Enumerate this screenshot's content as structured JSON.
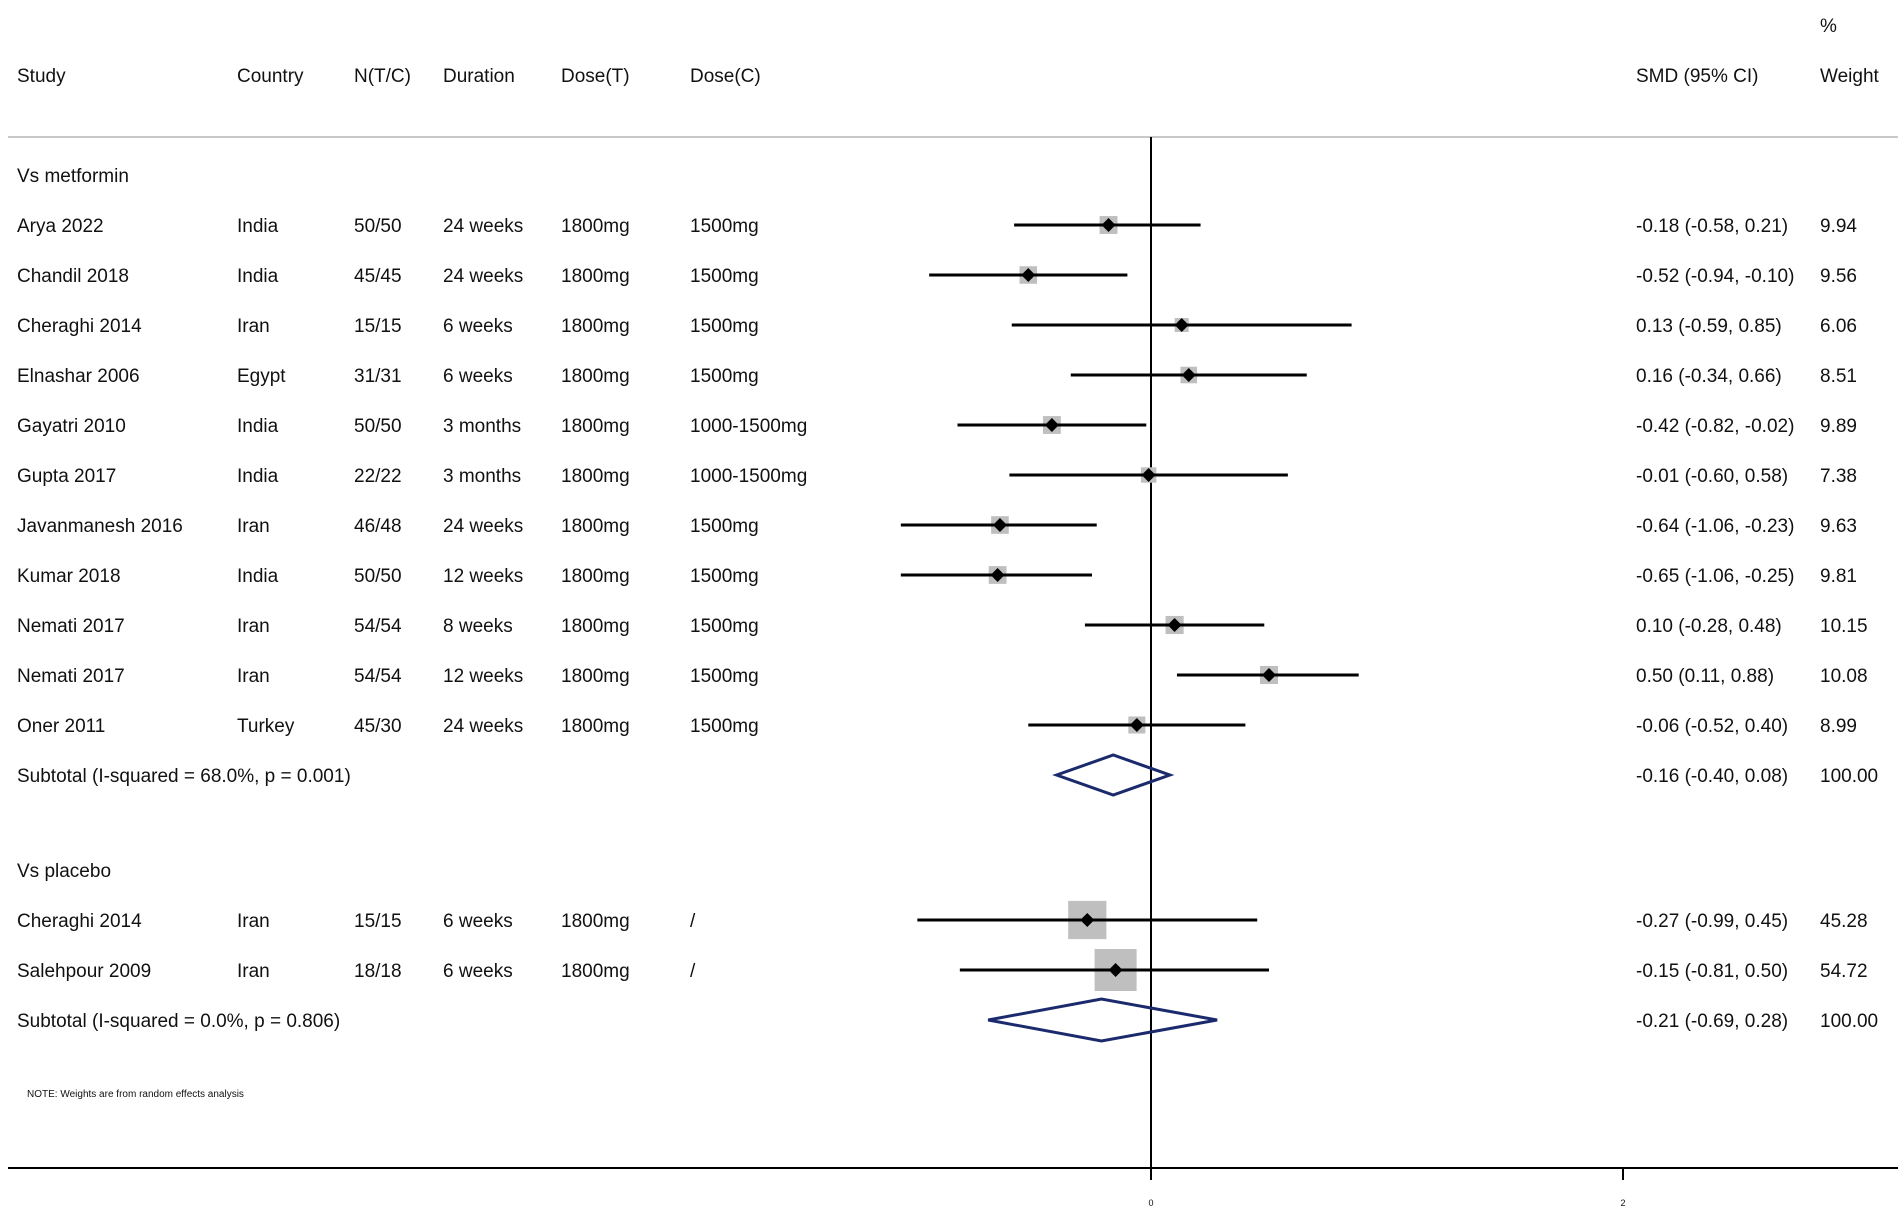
{
  "header": {
    "columns": {
      "study": "Study",
      "country": "Country",
      "n": "N(T/C)",
      "duration": "Duration",
      "dose_t": "Dose(T)",
      "dose_c": "Dose(C)",
      "smd": "SMD (95% CI)",
      "weight_top": "%",
      "weight": "Weight"
    }
  },
  "note": "NOTE: Weights are from random effects analysis",
  "colors": {
    "point": "#000000",
    "weight_box": "#bfbfbf",
    "diamond": "#1a2a6c",
    "axis": "#000000"
  },
  "chart_data": {
    "type": "forest",
    "xlim": [
      -1.06,
      2.0
    ],
    "null_line": 0,
    "x_ticks": [
      "0",
      "2"
    ],
    "groups": [
      {
        "label": "Vs metformin",
        "studies": [
          {
            "study": "Arya 2022",
            "country": "India",
            "n": "50/50",
            "duration": "24 weeks",
            "dose_t": "1800mg",
            "dose_c": "1500mg",
            "smd": -0.18,
            "lo": -0.58,
            "hi": 0.21,
            "ci_text": "-0.18 (-0.58, 0.21)",
            "weight": 9.94,
            "weight_text": "9.94"
          },
          {
            "study": "Chandil 2018",
            "country": "India",
            "n": "45/45",
            "duration": "24 weeks",
            "dose_t": "1800mg",
            "dose_c": "1500mg",
            "smd": -0.52,
            "lo": -0.94,
            "hi": -0.1,
            "ci_text": "-0.52 (-0.94, -0.10)",
            "weight": 9.56,
            "weight_text": "9.56"
          },
          {
            "study": "Cheraghi 2014",
            "country": "Iran",
            "n": "15/15",
            "duration": "6 weeks",
            "dose_t": "1800mg",
            "dose_c": "1500mg",
            "smd": 0.13,
            "lo": -0.59,
            "hi": 0.85,
            "ci_text": "0.13 (-0.59, 0.85)",
            "weight": 6.06,
            "weight_text": "6.06"
          },
          {
            "study": "Elnashar 2006",
            "country": "Egypt",
            "n": "31/31",
            "duration": "6 weeks",
            "dose_t": "1800mg",
            "dose_c": "1500mg",
            "smd": 0.16,
            "lo": -0.34,
            "hi": 0.66,
            "ci_text": "0.16 (-0.34, 0.66)",
            "weight": 8.51,
            "weight_text": "8.51"
          },
          {
            "study": "Gayatri 2010",
            "country": "India",
            "n": "50/50",
            "duration": "3 months",
            "dose_t": "1800mg",
            "dose_c": "1000-1500mg",
            "smd": -0.42,
            "lo": -0.82,
            "hi": -0.02,
            "ci_text": "-0.42 (-0.82, -0.02)",
            "weight": 9.89,
            "weight_text": "9.89"
          },
          {
            "study": "Gupta 2017",
            "country": "India",
            "n": "22/22",
            "duration": "3 months",
            "dose_t": "1800mg",
            "dose_c": "1000-1500mg",
            "smd": -0.01,
            "lo": -0.6,
            "hi": 0.58,
            "ci_text": "-0.01 (-0.60, 0.58)",
            "weight": 7.38,
            "weight_text": "7.38"
          },
          {
            "study": "Javanmanesh 2016",
            "country": "Iran",
            "n": "46/48",
            "duration": "24 weeks",
            "dose_t": "1800mg",
            "dose_c": "1500mg",
            "smd": -0.64,
            "lo": -1.06,
            "hi": -0.23,
            "ci_text": "-0.64 (-1.06, -0.23)",
            "weight": 9.63,
            "weight_text": "9.63"
          },
          {
            "study": "Kumar 2018",
            "country": "India",
            "n": "50/50",
            "duration": "12 weeks",
            "dose_t": "1800mg",
            "dose_c": "1500mg",
            "smd": -0.65,
            "lo": -1.06,
            "hi": -0.25,
            "ci_text": "-0.65 (-1.06, -0.25)",
            "weight": 9.81,
            "weight_text": "9.81"
          },
          {
            "study": "Nemati 2017",
            "country": "Iran",
            "n": "54/54",
            "duration": "8 weeks",
            "dose_t": "1800mg",
            "dose_c": "1500mg",
            "smd": 0.1,
            "lo": -0.28,
            "hi": 0.48,
            "ci_text": "0.10 (-0.28, 0.48)",
            "weight": 10.15,
            "weight_text": "10.15"
          },
          {
            "study": "Nemati 2017",
            "country": "Iran",
            "n": "54/54",
            "duration": "12 weeks",
            "dose_t": "1800mg",
            "dose_c": "1500mg",
            "smd": 0.5,
            "lo": 0.11,
            "hi": 0.88,
            "ci_text": "0.50 (0.11, 0.88)",
            "weight": 10.08,
            "weight_text": "10.08"
          },
          {
            "study": "Oner 2011",
            "country": "Turkey",
            "n": "45/30",
            "duration": "24 weeks",
            "dose_t": "1800mg",
            "dose_c": "1500mg",
            "smd": -0.06,
            "lo": -0.52,
            "hi": 0.4,
            "ci_text": "-0.06 (-0.52, 0.40)",
            "weight": 8.99,
            "weight_text": "8.99"
          }
        ],
        "subtotal": {
          "label": "Subtotal  (I-squared = 68.0%, p = 0.001)",
          "smd": -0.16,
          "lo": -0.4,
          "hi": 0.08,
          "ci_text": "-0.16 (-0.40, 0.08)",
          "weight_text": "100.00"
        }
      },
      {
        "label": "Vs placebo",
        "studies": [
          {
            "study": "Cheraghi 2014",
            "country": "Iran",
            "n": "15/15",
            "duration": "6 weeks",
            "dose_t": "1800mg",
            "dose_c": "/",
            "smd": -0.27,
            "lo": -0.99,
            "hi": 0.45,
            "ci_text": "-0.27 (-0.99, 0.45)",
            "weight": 45.28,
            "weight_text": "45.28"
          },
          {
            "study": "Salehpour 2009",
            "country": "Iran",
            "n": "18/18",
            "duration": "6 weeks",
            "dose_t": "1800mg",
            "dose_c": "/",
            "smd": -0.15,
            "lo": -0.81,
            "hi": 0.5,
            "ci_text": "-0.15 (-0.81, 0.50)",
            "weight": 54.72,
            "weight_text": "54.72"
          }
        ],
        "subtotal": {
          "label": "Subtotal  (I-squared = 0.0%, p = 0.806)",
          "smd": -0.21,
          "lo": -0.69,
          "hi": 0.28,
          "ci_text": "-0.21 (-0.69, 0.28)",
          "weight_text": "100.00"
        }
      }
    ]
  }
}
